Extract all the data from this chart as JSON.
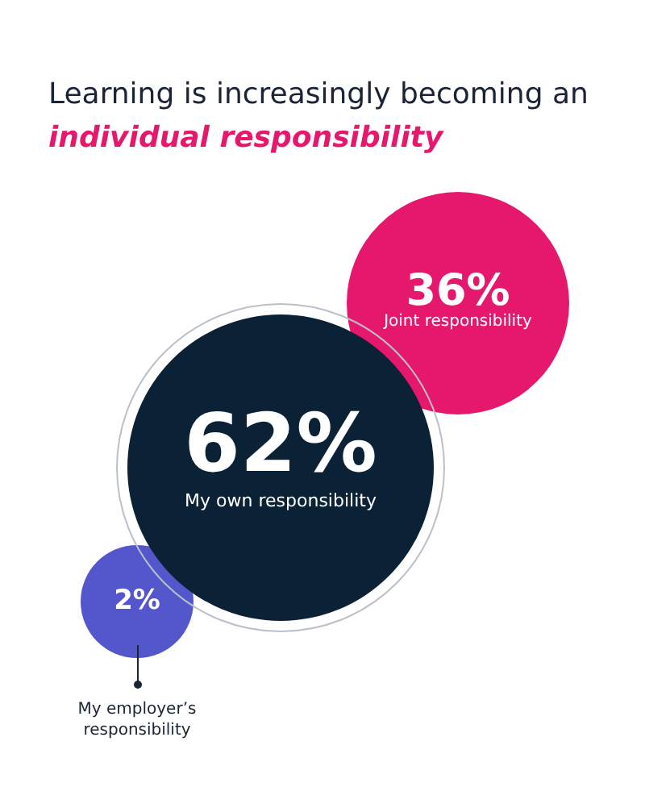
{
  "chart_data": {
    "type": "other",
    "title": "Learning is increasingly becoming an",
    "subtitle": "individual responsibility",
    "categories": [
      "My own responsibility",
      "Joint responsibility",
      "My employer’s responsibility"
    ],
    "values": [
      62,
      36,
      2
    ],
    "value_labels": [
      "62%",
      "36%",
      "2%"
    ],
    "colors": [
      "#0a2136",
      "#e5186e",
      "#5457cc"
    ]
  }
}
